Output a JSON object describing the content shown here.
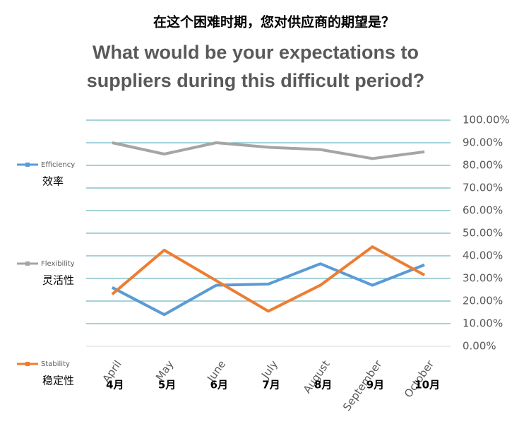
{
  "chart_data": {
    "type": "line",
    "title_zh": "在这个困难时期，您对供应商的期望是？",
    "title": "What would be your expectations to suppliers during this difficult period?",
    "categories": [
      "April",
      "May",
      "June",
      "July",
      "August",
      "September",
      "October"
    ],
    "categories_zh": [
      "4月",
      "5月",
      "6月",
      "7月",
      "8月",
      "9月",
      "10月"
    ],
    "series": [
      {
        "name": "Efficiency",
        "name_zh": "效率",
        "color": "#5b9bd5",
        "values": [
          26,
          14,
          27,
          27.5,
          36.5,
          27,
          36
        ]
      },
      {
        "name": "Flexibility",
        "name_zh": "灵活性",
        "color": "#a5a5a5",
        "values": [
          90,
          85,
          90,
          88,
          87,
          83,
          86
        ]
      },
      {
        "name": "Stability",
        "name_zh": "稳定性",
        "color": "#ed7d31",
        "values": [
          23,
          42.5,
          29,
          15.5,
          27,
          44,
          31.5
        ]
      }
    ],
    "ylim": [
      0,
      100
    ],
    "yticks": [
      {
        "value": 0,
        "label": "0.00%"
      },
      {
        "value": 10,
        "label": "10.00%"
      },
      {
        "value": 20,
        "label": "20.00%"
      },
      {
        "value": 30,
        "label": "30.00%"
      },
      {
        "value": 40,
        "label": "40.00%"
      },
      {
        "value": 50,
        "label": "50.00%"
      },
      {
        "value": 60,
        "label": "60.00%"
      },
      {
        "value": 70,
        "label": "70.00%"
      },
      {
        "value": 80,
        "label": "80.00%"
      },
      {
        "value": 90,
        "label": "90.00%"
      },
      {
        "value": 100,
        "label": "100.00%"
      }
    ],
    "grid": true,
    "grid_color": "#4ba6b4",
    "legend": "left"
  }
}
